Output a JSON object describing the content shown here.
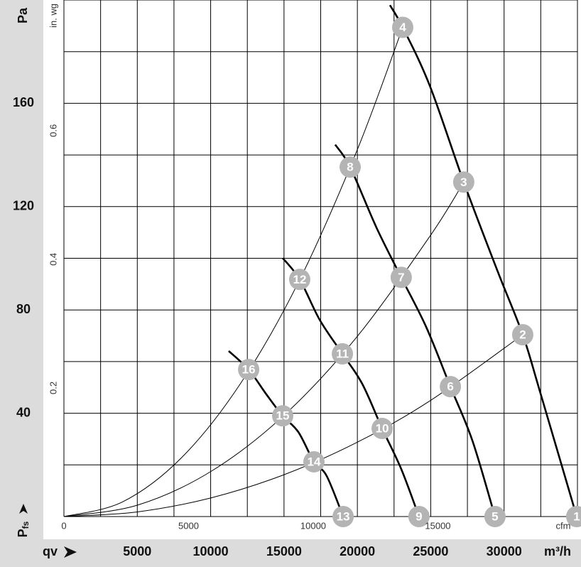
{
  "chart_data": {
    "type": "line",
    "xlabel": "m³/h",
    "x_quantity": "qv",
    "ylabel": "Pa",
    "y_quantity": {
      "symbol": "P",
      "subscript": "fs"
    },
    "xlim": [
      0,
      35000
    ],
    "xticks": [
      5000,
      10000,
      15000,
      20000,
      25000,
      30000
    ],
    "ylim": [
      0,
      200
    ],
    "yticks": [
      40,
      80,
      120,
      160
    ],
    "x2label": "cfm",
    "x2lim": [
      0,
      20600
    ],
    "x2ticks": [
      0,
      5000,
      10000,
      15000
    ],
    "y2label": "in. wg",
    "y2lim": [
      0,
      0.803
    ],
    "y2ticks": [
      0.2,
      0.4,
      0.6
    ],
    "xgrid": [
      0,
      2500,
      5000,
      7500,
      10000,
      12500,
      15000,
      17500,
      20000,
      22500,
      25000,
      27500,
      30000,
      32500,
      35000
    ],
    "ygrid": [
      0,
      20,
      40,
      60,
      80,
      100,
      120,
      140,
      160,
      180,
      200
    ],
    "color": "#000000",
    "marker_color": "#b4b4b4",
    "fan_curves": [
      {
        "x": [
          22220,
          23090,
          24930,
          27250,
          29530,
          31270,
          32430,
          34950
        ],
        "values": [
          198,
          189.4,
          166.9,
          129.5,
          95.4,
          70.4,
          48.7,
          0
        ]
      },
      {
        "x": [
          18490,
          19510,
          21300,
          22990,
          24690,
          26340,
          27840,
          29380
        ],
        "values": [
          144,
          135.3,
          111.9,
          92.6,
          73.4,
          50.3,
          29.4,
          0
        ]
      },
      {
        "x": [
          14910,
          16070,
          17430,
          18980,
          20330,
          21690,
          22990,
          24200
        ],
        "values": [
          100.1,
          91.8,
          76.2,
          63.0,
          51.4,
          34.1,
          18.4,
          0
        ]
      },
      {
        "x": [
          11230,
          12590,
          13800,
          14910,
          15980,
          17040,
          17910,
          19030
        ],
        "values": [
          64.1,
          56.9,
          47.3,
          39.0,
          32.7,
          21.2,
          15.7,
          0
        ]
      }
    ],
    "system_curves": [
      {
        "x": [
          0,
          4000,
          8000,
          12000,
          16000,
          20000,
          23090
        ],
        "values": [
          0,
          5.7,
          22.7,
          51.2,
          90.9,
          142.1,
          189.4
        ]
      },
      {
        "x": [
          0,
          5000,
          10000,
          15000,
          20000,
          25000,
          27250
        ],
        "values": [
          0,
          4.4,
          17.4,
          39.2,
          69.8,
          109.0,
          129.5
        ]
      },
      {
        "x": [
          0,
          5000,
          10000,
          15000,
          20000,
          25000,
          31270
        ],
        "values": [
          0,
          1.8,
          7.2,
          16.2,
          28.8,
          45.0,
          70.4
        ]
      }
    ],
    "points": {
      "labels": [
        "1",
        "2",
        "3",
        "4",
        "5",
        "6",
        "7",
        "8",
        "9",
        "10",
        "11",
        "12",
        "13",
        "14",
        "15",
        "16"
      ],
      "x": [
        34950,
        31270,
        27250,
        23090,
        29380,
        26340,
        22990,
        19510,
        24200,
        21690,
        18980,
        16070,
        19030,
        17040,
        14910,
        12590
      ],
      "values": [
        0,
        70.4,
        129.5,
        189.4,
        0,
        50.3,
        92.6,
        135.3,
        0,
        34.1,
        63.0,
        91.8,
        0,
        21.2,
        39.0,
        56.9
      ]
    }
  }
}
